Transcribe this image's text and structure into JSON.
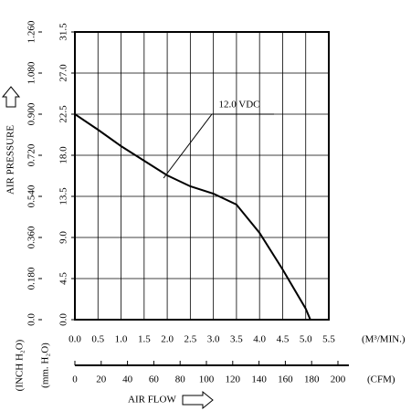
{
  "chart_data": {
    "type": "line",
    "x_label": "(M³/MIN.)",
    "y_label": "AIR PRESSURE",
    "y_unit_label": "(mm. H₂O)",
    "y2_unit_label": "(INCH H₂O)",
    "x2_label": "(CFM)",
    "x_title": "AIR FLOW",
    "series": [
      {
        "name": "12.0 VDC",
        "color": "#000000",
        "x": [
          0,
          0.5,
          1.0,
          1.5,
          2.0,
          2.5,
          3.0,
          3.5,
          4.0,
          4.5,
          5.0,
          5.1
        ],
        "values": [
          22.5,
          20.8,
          19.0,
          17.4,
          15.8,
          14.6,
          13.8,
          12.6,
          9.5,
          5.5,
          1.2,
          0
        ]
      }
    ],
    "xlim": [
      0,
      5.5
    ],
    "xticks": [
      {
        "value": 0,
        "label": "0.0"
      },
      0.5,
      {
        "value": 1,
        "label": "1.0"
      },
      1.5,
      {
        "value": 2,
        "label": "2.0"
      },
      2.5,
      {
        "value": 3,
        "label": "3.0"
      },
      3.5,
      {
        "value": 4,
        "label": "4.0"
      },
      4.5,
      {
        "value": 5,
        "label": "5.0"
      },
      5.5
    ],
    "ylim": [
      0,
      31.5
    ],
    "yticks": [
      {
        "value": 0,
        "label": "0.0"
      },
      4.5,
      {
        "value": 9,
        "label": "9.0"
      },
      13.5,
      {
        "value": 18,
        "label": "18.0"
      },
      22.5,
      {
        "value": 27,
        "label": "27.0"
      },
      31.5
    ],
    "y2lim": [
      0,
      1.26
    ],
    "y2ticks": [
      {
        "value": 0,
        "label": "0.0"
      },
      {
        "value": 0.18,
        "label": "0.180"
      },
      {
        "value": 0.36,
        "label": "0.360"
      },
      {
        "value": 0.54,
        "label": "0.540"
      },
      {
        "value": 0.72,
        "label": "0.720"
      },
      {
        "value": 0.9,
        "label": "0.900"
      },
      {
        "value": 1.08,
        "label": "1.080"
      },
      {
        "value": 1.26,
        "label": "1.260"
      }
    ],
    "x2lim": [
      0,
      200
    ],
    "x2ticks": [
      0,
      20,
      40,
      60,
      80,
      100,
      120,
      140,
      160,
      180,
      200
    ],
    "grid": true
  }
}
